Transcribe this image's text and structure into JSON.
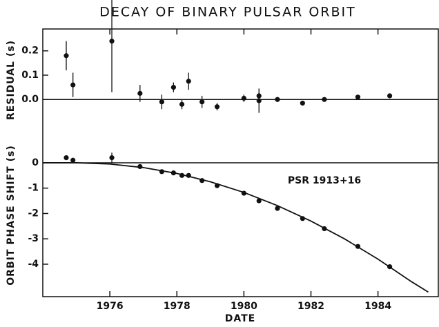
{
  "chart_data": [
    {
      "type": "scatter",
      "title": "DECAY OF BINARY PULSAR ORBIT",
      "ylabel": "RESIDUAL (s)",
      "xlim": [
        1974,
        1985.8
      ],
      "xticks": [
        1976,
        1978,
        1980,
        1982,
        1984
      ],
      "ylim": [
        -0.13,
        0.29
      ],
      "yticks": [
        {
          "value": 0.2,
          "label": "0.2"
        },
        {
          "value": 0.1,
          "label": "0.1"
        },
        {
          "value": 0,
          "label": "0.0"
        }
      ],
      "zero_line": true,
      "series": [
        {
          "style": "points",
          "color": "#111",
          "x": [
            1974.7,
            1974.9,
            1976.06,
            1976.9,
            1977.55,
            1977.9,
            1978.15,
            1978.35,
            1978.75,
            1979.2,
            1980.0,
            1980.45,
            1980.45,
            1981.0,
            1981.75,
            1982.4,
            1983.4,
            1984.35
          ],
          "values": [
            0.18,
            0.06,
            0.24,
            0.025,
            -0.01,
            0.05,
            -0.02,
            0.075,
            -0.01,
            -0.03,
            0.005,
            0.015,
            -0.005,
            0.0,
            -0.015,
            0.0,
            0.01,
            0.015
          ],
          "errors": [
            0.06,
            0.05,
            0.21,
            0.035,
            0.03,
            0.02,
            0.02,
            0.035,
            0.025,
            0.015,
            0.015,
            0.01,
            0.05,
            0.01,
            0.005,
            0.005,
            0.005,
            0.005
          ]
        }
      ]
    },
    {
      "type": "scatter",
      "xlabel": "DATE",
      "ylabel": "ORBIT PHASE SHIFT (s)",
      "annotation": "PSR 1913+16",
      "xlim": [
        1974,
        1985.8
      ],
      "xticks": [
        1976,
        1978,
        1980,
        1982,
        1984
      ],
      "xtick_labels": true,
      "ylim": [
        -5.28,
        1.25
      ],
      "yticks": [
        0,
        -1,
        -2,
        -3,
        -4
      ],
      "zero_line": true,
      "series": [
        {
          "style": "points",
          "color": "#111",
          "x": [
            1974.7,
            1974.9,
            1976.06,
            1976.9,
            1977.55,
            1977.9,
            1978.15,
            1978.35,
            1978.75,
            1979.2,
            1980.0,
            1980.45,
            1981.0,
            1981.75,
            1982.4,
            1983.4,
            1984.35
          ],
          "values": [
            0.2,
            0.1,
            0.2,
            -0.15,
            -0.35,
            -0.4,
            -0.5,
            -0.5,
            -0.7,
            -0.9,
            -1.2,
            -1.5,
            -1.8,
            -2.2,
            -2.6,
            -3.3,
            -4.1
          ],
          "errors": [
            0,
            0,
            0.2,
            0,
            0,
            0,
            0,
            0,
            0,
            0,
            0,
            0,
            0,
            0,
            0,
            0,
            0
          ]
        },
        {
          "style": "line",
          "color": "#111",
          "x": [
            1974,
            1975,
            1976,
            1977,
            1978,
            1979,
            1980,
            1981,
            1982,
            1983,
            1984,
            1985,
            1985.5
          ],
          "values": [
            0,
            0,
            -0.05,
            -0.19,
            -0.42,
            -0.75,
            -1.17,
            -1.69,
            -2.3,
            -3.0,
            -3.8,
            -4.69,
            -5.1
          ]
        }
      ]
    }
  ]
}
